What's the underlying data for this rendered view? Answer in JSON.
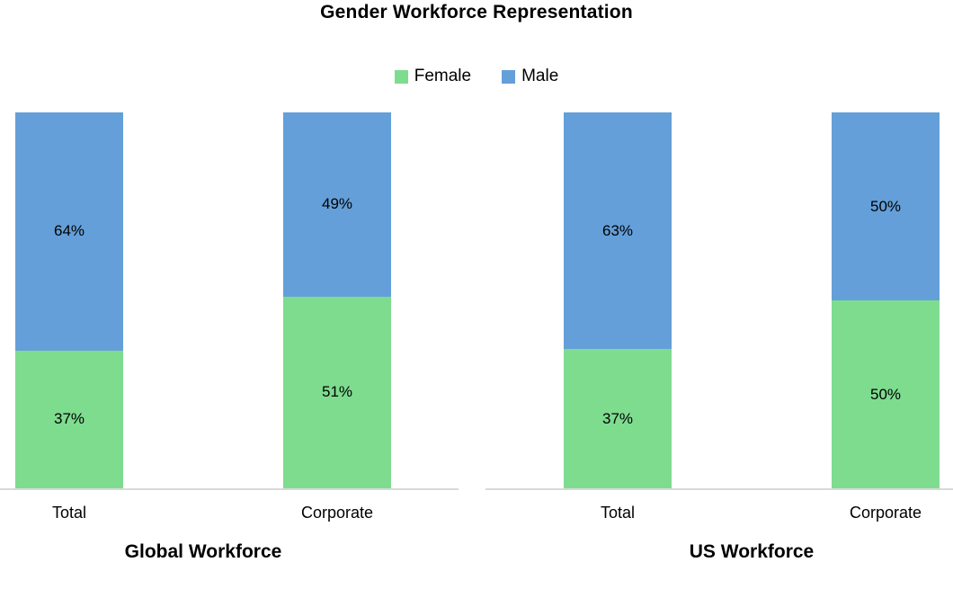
{
  "chart_data": {
    "type": "bar",
    "stacked": true,
    "title": "Gender Workforce Representation",
    "legend": [
      {
        "name": "Female",
        "color": "#7edc8f"
      },
      {
        "name": "Male",
        "color": "#649fd9"
      }
    ],
    "legend_position": "top-center",
    "grid": false,
    "ylim": [
      0,
      100
    ],
    "panels": [
      {
        "title": "Global Workforce",
        "categories": [
          "Total",
          "Corporate"
        ],
        "series": [
          {
            "name": "Female",
            "values": [
              37,
              51
            ]
          },
          {
            "name": "Male",
            "values": [
              64,
              49
            ]
          }
        ]
      },
      {
        "title": "US Workforce",
        "categories": [
          "Total",
          "Corporate"
        ],
        "series": [
          {
            "name": "Female",
            "values": [
              37,
              50
            ]
          },
          {
            "name": "Male",
            "values": [
              63,
              50
            ]
          }
        ]
      }
    ],
    "labels": {
      "global_total_female": "37%",
      "global_total_male": "64%",
      "global_corporate_female": "51%",
      "global_corporate_male": "49%",
      "us_total_female": "37%",
      "us_total_male": "63%",
      "us_corporate_female": "50%",
      "us_corporate_male": "50%"
    }
  }
}
